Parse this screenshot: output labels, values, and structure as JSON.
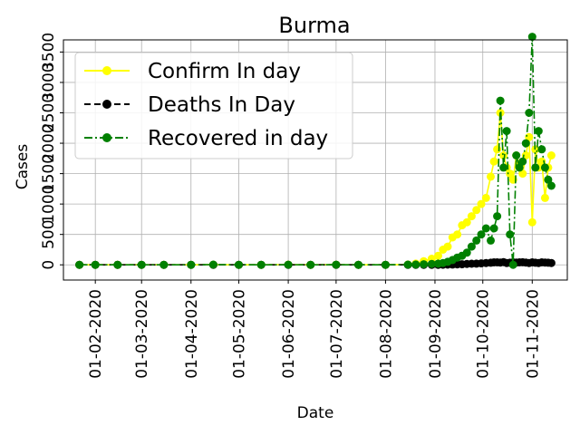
{
  "chart_data": {
    "type": "line",
    "title": "Burma",
    "xlabel": "Date",
    "ylabel": "Cases",
    "grid": true,
    "legend_position": "upper-left",
    "x_ticks": [
      "01-02-2020",
      "01-03-2020",
      "01-04-2020",
      "01-05-2020",
      "01-06-2020",
      "01-07-2020",
      "01-08-2020",
      "01-09-2020",
      "01-10-2020",
      "01-11-2020"
    ],
    "y_ticks": [
      "0",
      "500",
      "1000",
      "1500",
      "2000",
      "2500",
      "3000",
      "3500"
    ],
    "ylim": [
      -250,
      3700
    ],
    "x": [
      "2020-01-22",
      "2020-02-01",
      "2020-02-15",
      "2020-03-01",
      "2020-03-15",
      "2020-04-01",
      "2020-04-15",
      "2020-05-01",
      "2020-05-15",
      "2020-06-01",
      "2020-06-15",
      "2020-07-01",
      "2020-07-15",
      "2020-08-01",
      "2020-08-15",
      "2020-08-20",
      "2020-08-25",
      "2020-08-30",
      "2020-09-03",
      "2020-09-06",
      "2020-09-09",
      "2020-09-12",
      "2020-09-15",
      "2020-09-18",
      "2020-09-21",
      "2020-09-24",
      "2020-09-27",
      "2020-09-30",
      "2020-10-03",
      "2020-10-06",
      "2020-10-08",
      "2020-10-10",
      "2020-10-12",
      "2020-10-14",
      "2020-10-16",
      "2020-10-18",
      "2020-10-20",
      "2020-10-22",
      "2020-10-24",
      "2020-10-26",
      "2020-10-28",
      "2020-10-30",
      "2020-11-01",
      "2020-11-03",
      "2020-11-05",
      "2020-11-07",
      "2020-11-09",
      "2020-11-11",
      "2020-11-13"
    ],
    "series": [
      {
        "name": "Confirm In day",
        "color": "#ffff00",
        "linestyle": "solid",
        "values": [
          0,
          0,
          0,
          0,
          0,
          0,
          2,
          0,
          1,
          3,
          1,
          2,
          0,
          1,
          5,
          20,
          60,
          100,
          150,
          250,
          300,
          450,
          500,
          650,
          700,
          800,
          900,
          1000,
          1100,
          1450,
          1700,
          1900,
          2500,
          1800,
          1600,
          1500,
          1400,
          1800,
          1650,
          1500,
          1800,
          2100,
          700,
          1900,
          1600,
          1700,
          1100,
          1600,
          1800
        ]
      },
      {
        "name": "Deaths In Day",
        "color": "#000000",
        "linestyle": "dashed",
        "values": [
          0,
          0,
          0,
          0,
          0,
          0,
          0,
          0,
          0,
          0,
          0,
          0,
          0,
          0,
          0,
          0,
          0,
          0,
          0,
          2,
          3,
          5,
          8,
          10,
          15,
          18,
          20,
          25,
          30,
          35,
          40,
          40,
          38,
          45,
          30,
          35,
          40,
          38,
          40,
          42,
          38,
          30,
          40,
          35,
          30,
          40,
          38,
          35,
          30
        ]
      },
      {
        "name": "Recovered in day",
        "color": "#008000",
        "linestyle": "dashdot",
        "values": [
          0,
          0,
          0,
          0,
          0,
          0,
          3,
          0,
          1,
          2,
          1,
          2,
          0,
          1,
          3,
          5,
          10,
          15,
          20,
          30,
          50,
          80,
          120,
          150,
          200,
          300,
          400,
          500,
          600,
          400,
          600,
          800,
          2700,
          1600,
          2200,
          500,
          0,
          1800,
          1600,
          1700,
          2000,
          2500,
          3750,
          1600,
          2200,
          1900,
          1600,
          1400,
          1300
        ]
      }
    ]
  }
}
